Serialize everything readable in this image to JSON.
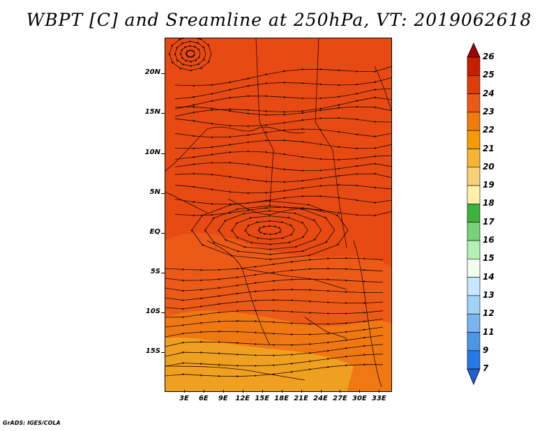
{
  "title": "WBPT [C] and Sreamline at 250hPa, VT: 2019062618",
  "footer": "GrADS: IGES/COLA",
  "map": {
    "variable": "Wet-bulb potential temperature",
    "units": "C",
    "level": "250hPa",
    "valid_time": "2019062618",
    "lon_range": [
      0,
      35
    ],
    "lat_range": [
      -20,
      24.5
    ],
    "y_ticks": [
      {
        "label": "20N",
        "lat": 20
      },
      {
        "label": "15N",
        "lat": 15
      },
      {
        "label": "10N",
        "lat": 10
      },
      {
        "label": "5N",
        "lat": 5
      },
      {
        "label": "EQ",
        "lat": 0
      },
      {
        "label": "5S",
        "lat": -5
      },
      {
        "label": "10S",
        "lat": -10
      },
      {
        "label": "15S",
        "lat": -15
      }
    ],
    "x_ticks": [
      {
        "label": "3E",
        "lon": 3
      },
      {
        "label": "6E",
        "lon": 6
      },
      {
        "label": "9E",
        "lon": 9
      },
      {
        "label": "12E",
        "lon": 12
      },
      {
        "label": "15E",
        "lon": 15
      },
      {
        "label": "18E",
        "lon": 18
      },
      {
        "label": "21E",
        "lon": 21
      },
      {
        "label": "24E",
        "lon": 24
      },
      {
        "label": "27E",
        "lon": 27
      },
      {
        "label": "30E",
        "lon": 30
      },
      {
        "label": "33E",
        "lon": 33
      }
    ],
    "fill_colors": {
      "north_dominant": "#e84a14",
      "central_band": "#e8561a",
      "south_band": "#f07a10",
      "far_south": "#f0a020"
    }
  },
  "colorbar": {
    "labels": [
      "26",
      "25",
      "24",
      "23",
      "22",
      "21",
      "20",
      "19",
      "18",
      "17",
      "16",
      "15",
      "14",
      "13",
      "12",
      "11",
      "9",
      "7"
    ],
    "colors": [
      "#a00000",
      "#c81e00",
      "#e03c0a",
      "#ec5a14",
      "#f07a0a",
      "#f59a00",
      "#f5b432",
      "#f5d278",
      "#fff0aa",
      "#3cb43c",
      "#78d278",
      "#b4f0b4",
      "#f0fff0",
      "#c8e6ff",
      "#a0d2f5",
      "#78b4f0",
      "#4c96e6",
      "#2878e6",
      "#1e60d2"
    ]
  }
}
